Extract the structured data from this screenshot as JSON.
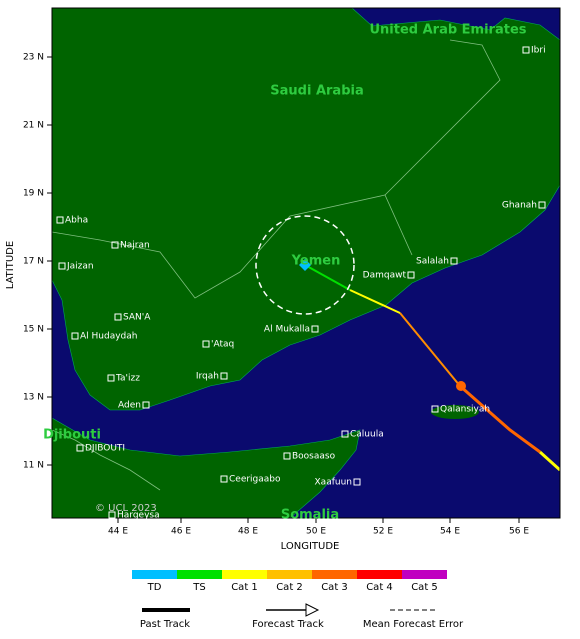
{
  "map": {
    "country_labels": [
      "United Arab Emirates",
      "Saudi Arabia",
      "Yemen",
      "Djibouti",
      "Somalia"
    ],
    "cities": [
      "Ibri",
      "Abha",
      "Najran",
      "Jaizan",
      "SAN'A",
      "Al Hudaydah",
      "Ta'izz",
      "Aden",
      "'Ataq",
      "Irqah",
      "Al Mukalla",
      "Damqawt",
      "Salalah",
      "Ghanah",
      "Qalansiyah",
      "Caluula",
      "Boosaaso",
      "Xaafuun",
      "Ceerigaabo",
      "DJIBOUTI",
      "Hargeysa"
    ],
    "lat_ticks": [
      "23 N",
      "21 N",
      "19 N",
      "17 N",
      "15 N",
      "13 N",
      "11 N"
    ],
    "lon_ticks": [
      "44 E",
      "46 E",
      "48 E",
      "50 E",
      "52 E",
      "54 E",
      "56 E"
    ],
    "x_axis_label": "LONGITUDE",
    "y_axis_label": "LATITUDE",
    "copyright": "© UCL 2023"
  },
  "legend": {
    "categories": [
      {
        "name": "TD",
        "color": "#00bfff"
      },
      {
        "name": "TS",
        "color": "#00e000"
      },
      {
        "name": "Cat 1",
        "color": "#ffff00"
      },
      {
        "name": "Cat 2",
        "color": "#ffc000"
      },
      {
        "name": "Cat 3",
        "color": "#ff6600"
      },
      {
        "name": "Cat 4",
        "color": "#ff0000"
      },
      {
        "name": "Cat 5",
        "color": "#c000c0"
      }
    ],
    "track_items": [
      "Past Track",
      "Forecast Track",
      "Mean Forecast Error"
    ]
  }
}
